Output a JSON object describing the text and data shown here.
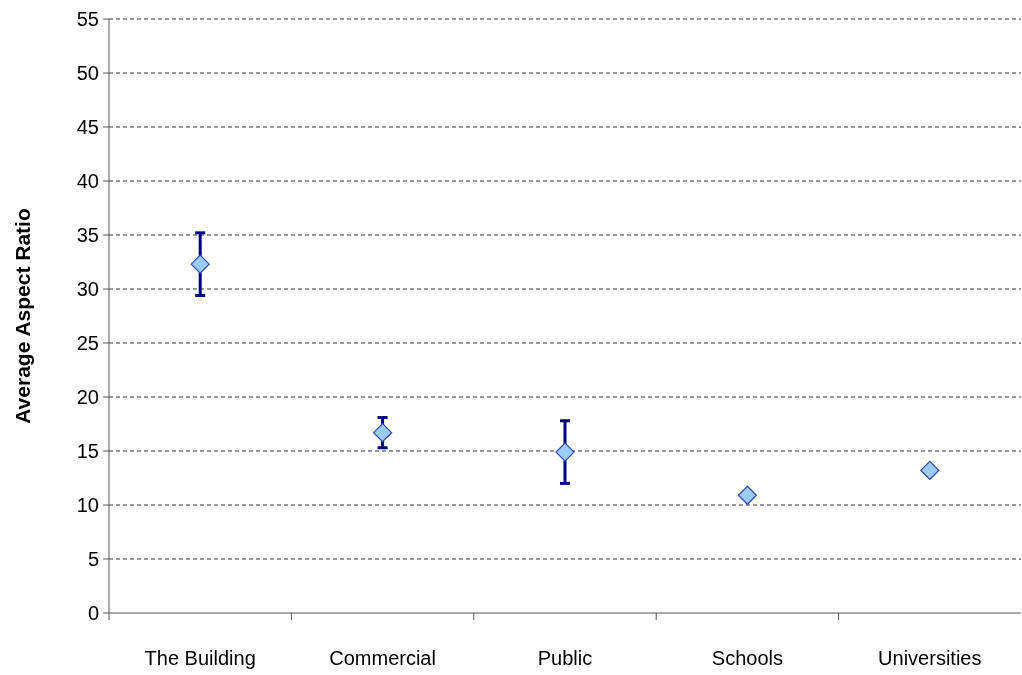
{
  "chart_data": {
    "type": "scatter",
    "ylabel": "Average Aspect Ratio",
    "categories": [
      "The Building",
      "Commercial",
      "Public",
      "Schools",
      "Universities"
    ],
    "values": [
      32.3,
      16.7,
      14.9,
      10.9,
      13.2
    ],
    "errors": [
      2.9,
      1.4,
      2.9,
      null,
      null
    ],
    "color": "#99ccff",
    "ylim": [
      0,
      55
    ],
    "yticks": [
      0,
      5,
      10,
      15,
      20,
      25,
      30,
      35,
      40,
      45,
      50,
      55
    ],
    "grid": "y",
    "marker": "diamond"
  }
}
